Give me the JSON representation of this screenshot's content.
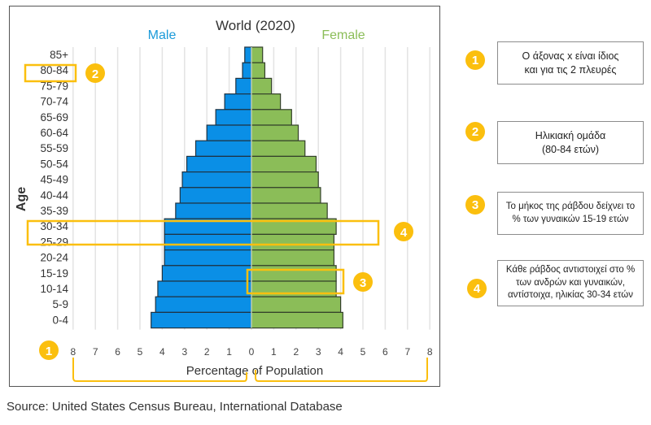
{
  "chart_data": {
    "type": "bar",
    "orientation": "horizontal-population-pyramid",
    "title": "World (2020)",
    "xlabel": "Percentage of Population",
    "ylabel": "Age",
    "xlim": [
      0,
      8
    ],
    "x_ticks_left": [
      "8",
      "7",
      "6",
      "5",
      "4",
      "3",
      "2",
      "1",
      "0"
    ],
    "x_ticks_right": [
      "1",
      "2",
      "3",
      "4",
      "5",
      "6",
      "7",
      "8"
    ],
    "grid": true,
    "categories": [
      "85+",
      "80-84",
      "75-79",
      "70-74",
      "65-69",
      "60-64",
      "55-59",
      "50-54",
      "45-49",
      "40-44",
      "35-39",
      "30-34",
      "25-29",
      "20-24",
      "15-19",
      "10-14",
      "5-9",
      "0-4"
    ],
    "series": [
      {
        "name": "Male",
        "color": "#0a8fe6",
        "values": [
          0.3,
          0.4,
          0.7,
          1.2,
          1.6,
          2.0,
          2.5,
          2.9,
          3.1,
          3.2,
          3.4,
          3.9,
          3.9,
          3.9,
          4.0,
          4.2,
          4.3,
          4.5
        ]
      },
      {
        "name": "Female",
        "color": "#8bbd58",
        "values": [
          0.5,
          0.6,
          0.9,
          1.3,
          1.8,
          2.1,
          2.4,
          2.9,
          3.0,
          3.1,
          3.4,
          3.8,
          3.7,
          3.7,
          3.8,
          3.8,
          4.0,
          4.1
        ]
      }
    ]
  },
  "legend": {
    "male": "Male",
    "female": "Female"
  },
  "source": "Source: United States Census Bureau, International Database",
  "annotations": [
    {
      "badge": "1",
      "text_lines": [
        "Ο άξονας x είναι ίδιος",
        "και για τις 2 πλευρές"
      ]
    },
    {
      "badge": "2",
      "text_lines": [
        "Ηλικιακή ομάδα",
        "(80-84 ετών)"
      ]
    },
    {
      "badge": "3",
      "text_lines": [
        "Το μήκος της ράβδου δείχνει το",
        "% των γυναικών 15-19 ετών"
      ]
    },
    {
      "badge": "4",
      "text_lines": [
        "Κάθε ράβδος αντιστοιχεί στο %",
        "των ανδρών και γυναικών,",
        "αντίστοιχα, ηλικίας 30-34 ετών"
      ]
    }
  ],
  "colors": {
    "highlight": "#fbbf0e",
    "male": "#0a8fe6",
    "female": "#8bbd58"
  }
}
